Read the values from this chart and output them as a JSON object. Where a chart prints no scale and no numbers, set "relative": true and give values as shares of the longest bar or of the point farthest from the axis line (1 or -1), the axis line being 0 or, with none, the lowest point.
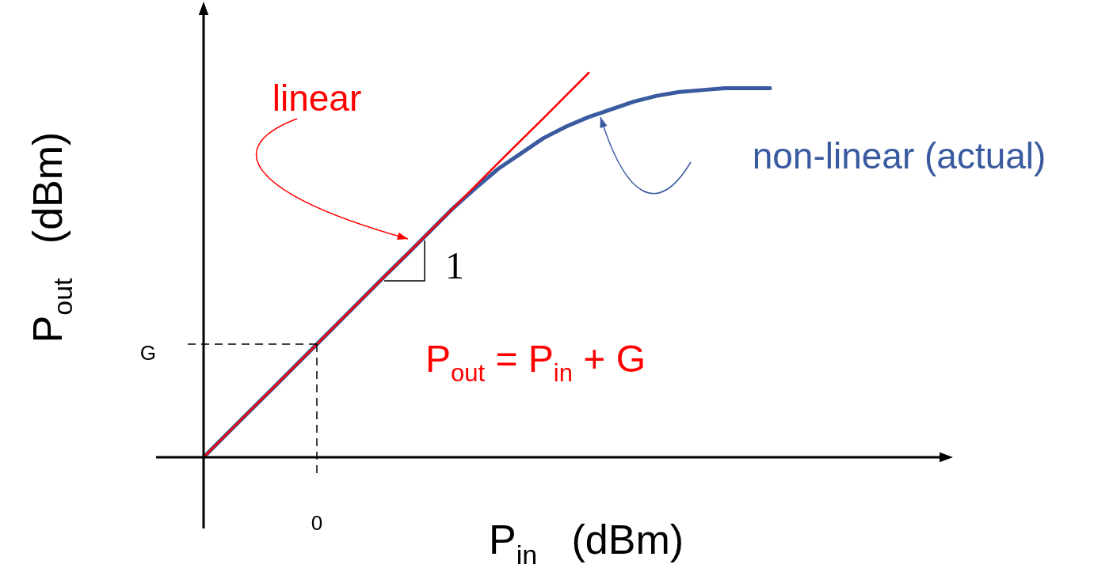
{
  "chart_data": {
    "type": "line",
    "relative": true,
    "marker": "none",
    "line_style": "solid",
    "categories": [
      null,
      null,
      null,
      null,
      null,
      null,
      null,
      null,
      null,
      null,
      null,
      null,
      null,
      null,
      null,
      null,
      null,
      null,
      null,
      null,
      null,
      null,
      null,
      null,
      null,
      null
    ],
    "xlabel": "P$_{in}$   (dBm)",
    "ylabel": "P$_{out}$   (dBm)",
    "series": [
      {
        "name": "linear",
        "color": "#ff0000",
        "values": [
          0,
          0.059,
          0.118,
          0.176,
          0.235,
          0.294,
          0.353,
          0.412,
          0.471,
          0.529,
          0.588,
          0.647,
          0.706,
          0.765,
          0.824,
          0.882,
          0.941,
          1,
          null,
          null,
          null,
          null,
          null,
          null,
          null,
          null
        ]
      },
      {
        "name": "non-linear (actual)",
        "color": "#3a5aa0",
        "values": [
          0,
          0.059,
          0.118,
          0.176,
          0.235,
          0.294,
          0.353,
          0.412,
          0.471,
          0.529,
          0.588,
          0.647,
          0.7,
          0.75,
          0.79,
          0.83,
          0.86,
          0.885,
          0.905,
          0.925,
          0.94,
          0.95,
          0.955,
          0.96,
          0.96,
          0.96
        ]
      }
    ],
    "ref_lines": [
      {
        "axis": "y",
        "value": 0.294,
        "label": "G",
        "line_style": "dashed"
      }
    ],
    "annotations": [
      "1",
      "P$_{out}$ = P$_{in}$ + G",
      "0"
    ]
  }
}
